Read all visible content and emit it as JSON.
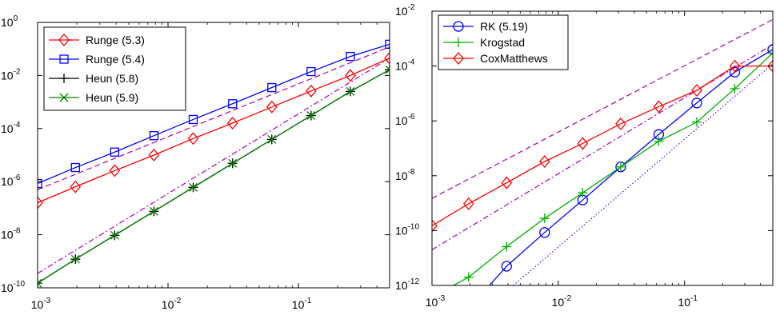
{
  "chart_data": [
    {
      "type": "line",
      "xscale": "log",
      "yscale": "log",
      "xlim": [
        0.001,
        0.5
      ],
      "ylim": [
        1e-10,
        1
      ],
      "grid": false,
      "legend": "top-left",
      "x_ticks": [
        {
          "value": 0.001,
          "base": "10",
          "exp": "-3"
        },
        {
          "value": 0.01,
          "base": "10",
          "exp": "-2"
        },
        {
          "value": 0.1,
          "base": "10",
          "exp": "-1"
        }
      ],
      "y_ticks": [
        {
          "value": 1,
          "base": "10",
          "exp": "0"
        },
        {
          "value": 0.01,
          "base": "10",
          "exp": "-2"
        },
        {
          "value": 0.0001,
          "base": "10",
          "exp": "-4"
        },
        {
          "value": 1e-06,
          "base": "10",
          "exp": "-6"
        },
        {
          "value": 1e-08,
          "base": "10",
          "exp": "-8"
        },
        {
          "value": 1e-10,
          "base": "10",
          "exp": "-10"
        }
      ],
      "x": [
        0.001,
        0.00195,
        0.0039,
        0.0078,
        0.0156,
        0.03125,
        0.0625,
        0.125,
        0.25,
        0.5
      ],
      "series": [
        {
          "name": "Runge (5.3)",
          "color": "#ff0000",
          "marker": "diamond",
          "values": [
            1.6e-07,
            6.4e-07,
            2.6e-06,
            1e-05,
            4.2e-05,
            0.00016,
            0.00065,
            0.0026,
            0.01,
            0.045
          ]
        },
        {
          "name": "Runge (5.4)",
          "color": "#0000ff",
          "marker": "square",
          "values": [
            8.5e-07,
            3.4e-06,
            1.3e-05,
            5.4e-05,
            0.00022,
            0.00086,
            0.0035,
            0.014,
            0.052,
            0.15
          ]
        },
        {
          "name": "Heun (5.8)",
          "color": "#000000",
          "marker": "plus",
          "values": [
            1.5e-10,
            1.2e-09,
            9.5e-09,
            7.6e-08,
            6.1e-07,
            4.9e-06,
            3.9e-05,
            0.00031,
            0.0025,
            0.0165
          ]
        },
        {
          "name": "Heun (5.9)",
          "color": "#008000",
          "marker": "x",
          "values": [
            1.5e-10,
            1.2e-09,
            9.5e-09,
            7.6e-08,
            6.1e-07,
            4.9e-06,
            3.9e-05,
            0.00031,
            0.0025,
            0.0165
          ]
        }
      ],
      "reference_lines": [
        {
          "style": "dashed",
          "color": "#b000b0",
          "x": [
            0.001,
            0.5
          ],
          "values": [
            5e-07,
            0.12
          ]
        },
        {
          "style": "dashdot",
          "color": "#b000b0",
          "x": [
            0.001,
            0.5
          ],
          "values": [
            3.5e-10,
            0.045
          ]
        }
      ]
    },
    {
      "type": "line",
      "xscale": "log",
      "yscale": "log",
      "xlim": [
        0.001,
        0.5
      ],
      "ylim": [
        1e-12,
        0.01
      ],
      "grid": false,
      "legend": "top-left",
      "x_ticks": [
        {
          "value": 0.001,
          "base": "10",
          "exp": "-3"
        },
        {
          "value": 0.01,
          "base": "10",
          "exp": "-2"
        },
        {
          "value": 0.1,
          "base": "10",
          "exp": "-1"
        }
      ],
      "y_ticks": [
        {
          "value": 0.01,
          "base": "10",
          "exp": "-2"
        },
        {
          "value": 0.0001,
          "base": "10",
          "exp": "-4"
        },
        {
          "value": 1e-06,
          "base": "10",
          "exp": "-6"
        },
        {
          "value": 1e-08,
          "base": "10",
          "exp": "-8"
        },
        {
          "value": 1e-10,
          "base": "10",
          "exp": "-10"
        },
        {
          "value": 1e-12,
          "base": "10",
          "exp": "-12"
        }
      ],
      "x": [
        0.001,
        0.00195,
        0.0039,
        0.0078,
        0.0156,
        0.03125,
        0.0625,
        0.125,
        0.25,
        0.5
      ],
      "series": [
        {
          "name": "RK (5.19)",
          "color": "#0000ff",
          "marker": "circle",
          "x": [
            0.0039,
            0.0078,
            0.0156,
            0.03125,
            0.0625,
            0.125,
            0.25,
            0.5
          ],
          "values": [
            5e-12,
            8.5e-11,
            1.3e-09,
            2.1e-08,
            3.2e-07,
            4.5e-06,
            6e-05,
            0.0004
          ],
          "first_x": 0.00285,
          "first_value": 1e-12
        },
        {
          "name": "Krogstad",
          "color": "#00b000",
          "marker": "plus",
          "values": [
            1e-12,
            2e-12,
            2.6e-11,
            2.8e-10,
            2.4e-09,
            2.1e-08,
            1.8e-07,
            9e-07,
            1.5e-05,
            0.0003
          ]
        },
        {
          "name": "CoxMatthews",
          "color": "#ff0000",
          "marker": "diamond",
          "values": [
            1.5e-10,
            9.5e-10,
            5.5e-09,
            3.3e-08,
            1.5e-07,
            7.8e-07,
            3.3e-06,
            1.3e-05,
            0.0001,
            0.0001
          ]
        }
      ],
      "krogstad_first_x": 0.00148,
      "reference_lines": [
        {
          "style": "dashed",
          "color": "#b000b0",
          "x": [
            0.001,
            0.5
          ],
          "values": [
            1.5e-09,
            0.005
          ]
        },
        {
          "style": "dashdot",
          "color": "#b000b0",
          "x": [
            0.001,
            0.5
          ],
          "values": [
            2e-11,
            0.0006
          ]
        },
        {
          "style": "dotted",
          "color": "#6000ff",
          "x": [
            0.0044,
            0.5
          ],
          "values": [
            1e-12,
            0.00012
          ]
        }
      ]
    }
  ]
}
